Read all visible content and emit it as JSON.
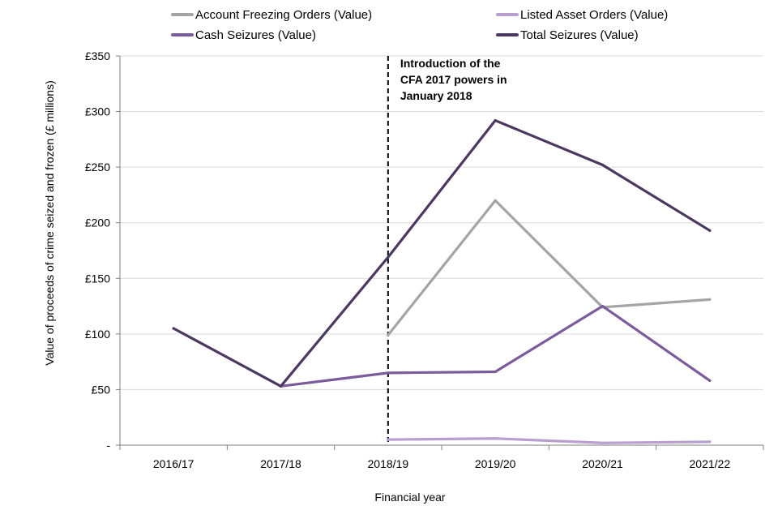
{
  "chart_data": {
    "type": "line",
    "title": "",
    "xlabel": "Financial year",
    "ylabel": "Value of proceeds of crime seized and frozen (£ millions)",
    "categories": [
      "2016/17",
      "2017/18",
      "2018/19",
      "2019/20",
      "2020/21",
      "2021/22"
    ],
    "ylim": [
      0,
      350
    ],
    "yticks": [
      {
        "value": 0,
        "label": "-"
      },
      {
        "value": 50,
        "label": "£50"
      },
      {
        "value": 100,
        "label": "£100"
      },
      {
        "value": 150,
        "label": "£150"
      },
      {
        "value": 200,
        "label": "£200"
      },
      {
        "value": 250,
        "label": "£250"
      },
      {
        "value": 300,
        "label": "£300"
      },
      {
        "value": 350,
        "label": "£350"
      }
    ],
    "grid": true,
    "legend_position": "top",
    "series": [
      {
        "name": "Account Freezing Orders (Value)",
        "color": "#a5a5a5",
        "values": [
          null,
          null,
          99,
          220,
          124,
          131
        ]
      },
      {
        "name": "Listed Asset Orders (Value)",
        "color": "#b99fd0",
        "values": [
          null,
          null,
          5,
          6,
          2,
          3
        ]
      },
      {
        "name": "Cash Seizures (Value)",
        "color": "#7a5c9c",
        "values": [
          null,
          53,
          65,
          66,
          125,
          58
        ]
      },
      {
        "name": "Total Seizures (Value)",
        "color": "#4b3860",
        "values": [
          105,
          53,
          169,
          292,
          252,
          193
        ]
      }
    ],
    "annotation": {
      "at_category": "2018/19",
      "lines": [
        "Introduction of the",
        "CFA 2017 powers in",
        "January 2018"
      ]
    }
  }
}
